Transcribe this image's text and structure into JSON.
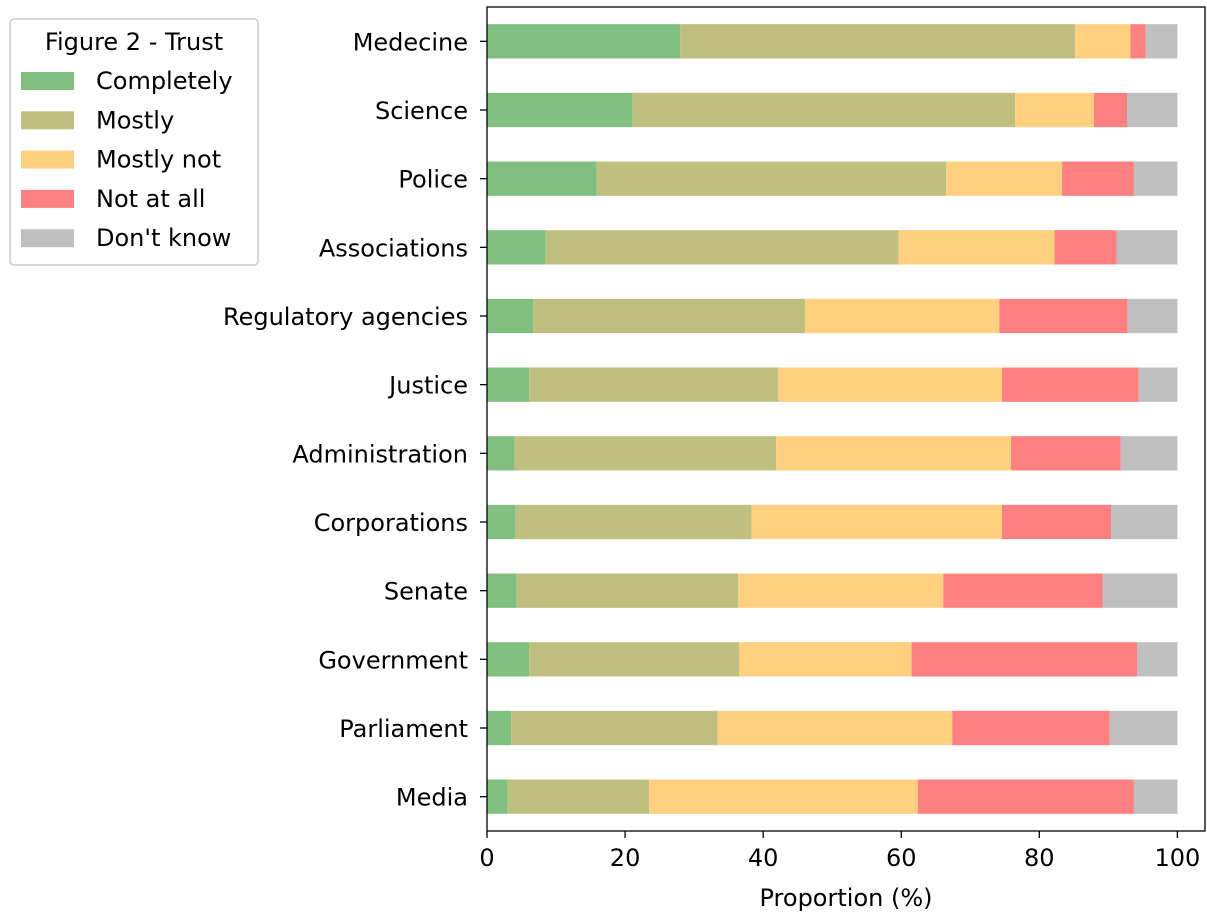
{
  "chart_data": {
    "type": "bar",
    "orientation": "horizontal",
    "stacked": true,
    "title": "",
    "xlabel": "Proportion (%)",
    "ylabel": "",
    "xlim": [
      0,
      104
    ],
    "xticks": [
      0,
      20,
      40,
      60,
      80,
      100
    ],
    "grid": false,
    "legend": {
      "title": "Figure 2 - Trust",
      "placement": "upper-left-outside"
    },
    "categories": [
      "Medecine",
      "Science",
      "Police",
      "Associations",
      "Regulatory agencies",
      "Justice",
      "Administration",
      "Corporations",
      "Senate",
      "Government",
      "Parliament",
      "Media"
    ],
    "series": [
      {
        "name": "Completely",
        "color": "#80bf80",
        "values": [
          28.0,
          21.1,
          15.9,
          8.5,
          6.7,
          6.1,
          4.0,
          4.1,
          4.3,
          6.1,
          3.5,
          3.0
        ]
      },
      {
        "name": "Mostly",
        "color": "#bfbf80",
        "values": [
          57.2,
          55.4,
          50.6,
          51.1,
          39.4,
          36.1,
          37.9,
          34.2,
          32.1,
          30.4,
          29.9,
          20.5
        ]
      },
      {
        "name": "Mostly not",
        "color": "#ffd080",
        "values": [
          8.0,
          11.4,
          16.8,
          22.6,
          28.1,
          32.4,
          34.0,
          36.3,
          29.7,
          25.0,
          34.0,
          38.9
        ]
      },
      {
        "name": "Not at all",
        "color": "#ff8080",
        "values": [
          2.2,
          4.8,
          10.4,
          9.0,
          18.6,
          19.8,
          15.9,
          15.8,
          23.1,
          32.7,
          22.8,
          31.3
        ]
      },
      {
        "name": "Don't know",
        "color": "#bfbfbf",
        "values": [
          4.6,
          7.3,
          6.3,
          8.8,
          7.2,
          5.6,
          8.2,
          9.6,
          10.8,
          5.8,
          9.8,
          6.3
        ]
      }
    ]
  }
}
